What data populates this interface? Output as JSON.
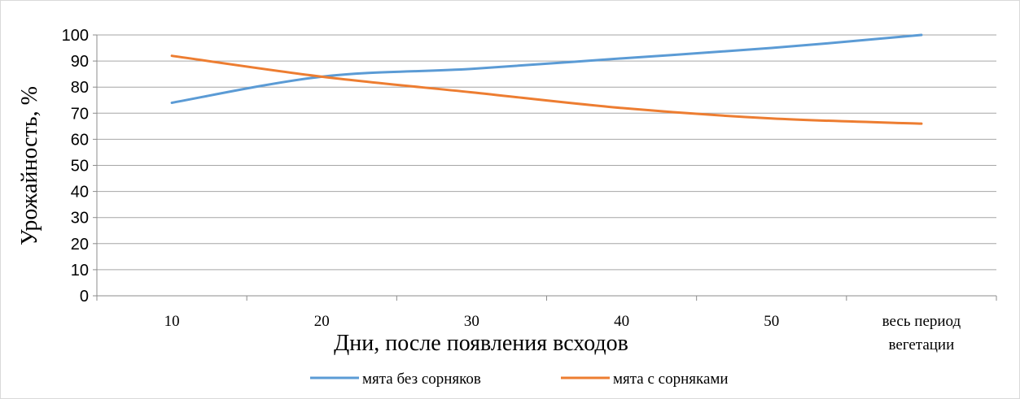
{
  "chart_data": {
    "type": "line",
    "categories": [
      "10",
      "20",
      "30",
      "40",
      "50",
      "весь период вегетации"
    ],
    "category_lines": [
      [
        "10"
      ],
      [
        "20"
      ],
      [
        "30"
      ],
      [
        "40"
      ],
      [
        "50"
      ],
      [
        "весь период",
        "вегетации"
      ]
    ],
    "series": [
      {
        "name": "мята без сорняков",
        "values": [
          74,
          84,
          87,
          91,
          95,
          100
        ],
        "color": "#5b9bd5"
      },
      {
        "name": "мята с сорняками",
        "values": [
          92,
          84,
          78,
          72,
          68,
          66
        ],
        "color": "#ed7d31"
      }
    ],
    "xlabel": "Дни, после появления всходов",
    "ylabel": "Урожайность, %",
    "ylim": [
      0,
      100
    ],
    "yticks": [
      0,
      10,
      20,
      30,
      40,
      50,
      60,
      70,
      80,
      90,
      100
    ],
    "grid": true,
    "legend_position": "bottom",
    "grid_color": "#a6a6a6",
    "axis_color": "#8c8c8c"
  }
}
